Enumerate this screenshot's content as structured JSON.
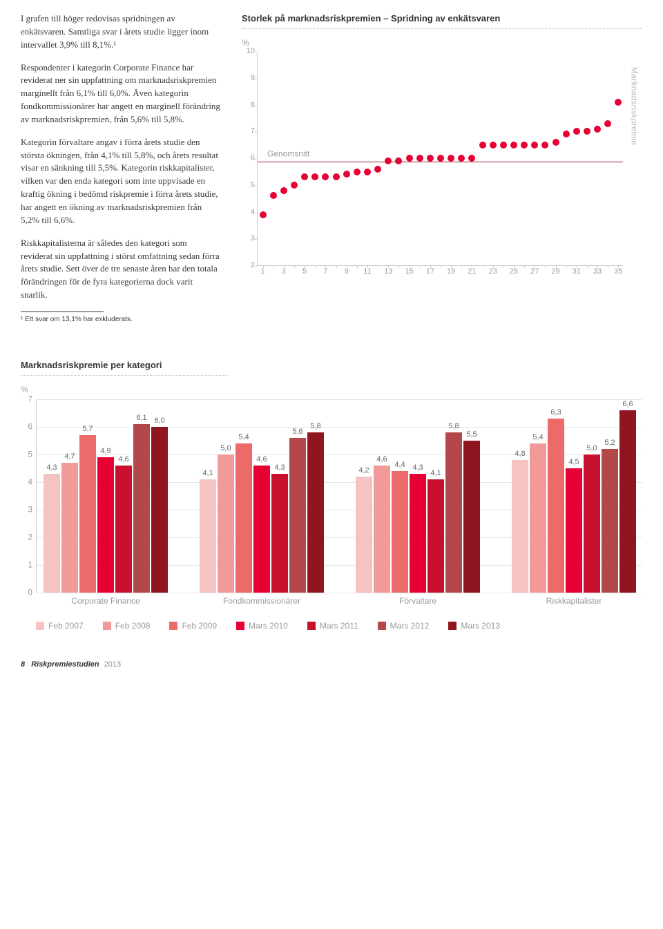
{
  "body": {
    "p1": "I grafen till höger redovisas spridningen av enkätsvaren. Samtliga svar i årets studie ligger inom intervallet 3,9% till 8,1%.¹",
    "p2": "Respondenter i kategorin Corporate Finance har reviderat ner sin uppfattning om marknadsriskpremien marginellt från 6,1% till 6,0%. Även kategorin fondkommissionärer har angett en marginell förändring av marknadsriskpremien, från 5,6% till 5,8%.",
    "p3": "Kategorin förvaltare angav i förra årets studie den största ökningen, från 4,1% till 5,8%, och årets resultat visar en sänkning till 5,5%. Kategorin riskkapitalister, vilken var den enda kategori som inte uppvisade en kraftig ökning i bedömd riskpremie i förra årets studie, har angett en ökning av marknadsriskpremien från 5,2% till 6,6%.",
    "p4": "Riskkapitalisterna är således den kategori som reviderat sin uppfattning i störst omfattning sedan förra årets studie. Sett över de tre senaste åren har den totala förändringen för de fyra kategorierna dock varit snarlik.",
    "footnote": "¹ Ett svar om 13,1% har exkluderats."
  },
  "scatter": {
    "title": "Storlek på marknadsriskpremien – Spridning av enkätsvaren",
    "pct": "%",
    "ylim": [
      2,
      10
    ],
    "ytick_step": 1,
    "xlim": [
      0.5,
      35.5
    ],
    "xticks": [
      1,
      3,
      5,
      7,
      9,
      11,
      13,
      15,
      17,
      19,
      21,
      23,
      25,
      27,
      29,
      31,
      33,
      35
    ],
    "avg_label": "Genomsnitt",
    "avg_value": 5.9,
    "avg_color": "#9a1a2a",
    "side_label": "Marknadsriskpremie",
    "dot_color": "#e60033",
    "values": [
      3.9,
      4.6,
      4.8,
      5.0,
      5.3,
      5.3,
      5.3,
      5.3,
      5.4,
      5.5,
      5.5,
      5.6,
      5.9,
      5.9,
      6.0,
      6.0,
      6.0,
      6.0,
      6.0,
      6.0,
      6.0,
      6.5,
      6.5,
      6.5,
      6.5,
      6.5,
      6.5,
      6.5,
      6.6,
      6.9,
      7.0,
      7.0,
      7.1,
      7.3,
      8.1
    ]
  },
  "bars": {
    "title": "Marknadsriskpremie per kategori",
    "pct": "%",
    "ymax": 7,
    "ytick_step": 1,
    "categories": [
      "Corporate Finance",
      "Fondkommissionärer",
      "Förvaltare",
      "Riskkapitalister"
    ],
    "series": [
      {
        "label": "Feb 2007",
        "color": "#f6c3c3"
      },
      {
        "label": "Feb 2008",
        "color": "#f29a9a"
      },
      {
        "label": "Feb 2009",
        "color": "#ec6a6a"
      },
      {
        "label": "Mars 2010",
        "color": "#e60033"
      },
      {
        "label": "Mars 2011",
        "color": "#c8102e"
      },
      {
        "label": "Mars 2012",
        "color": "#b3484a"
      },
      {
        "label": "Mars 2013",
        "color": "#8f1620"
      }
    ],
    "data": [
      [
        4.3,
        4.7,
        5.7,
        4.9,
        4.6,
        6.1,
        6.0
      ],
      [
        4.1,
        5.0,
        5.4,
        4.6,
        4.3,
        5.6,
        5.8
      ],
      [
        4.2,
        4.6,
        4.4,
        4.3,
        4.1,
        5.8,
        5.5
      ],
      [
        4.8,
        5.4,
        6.3,
        4.5,
        5.0,
        5.2,
        6.6
      ]
    ],
    "grid_color": "#e6e6e6"
  },
  "footer": {
    "page": "8",
    "doc": "Riskpremiestudien",
    "year": "2013"
  }
}
